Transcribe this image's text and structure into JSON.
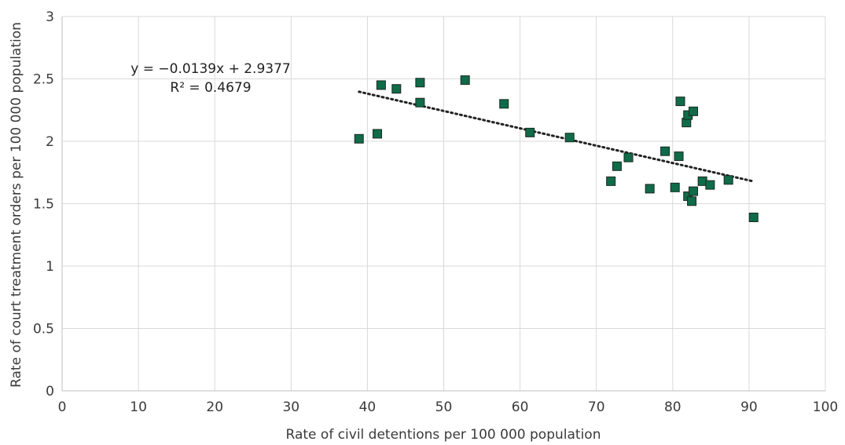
{
  "chart_data": {
    "type": "scatter",
    "title": "",
    "xlabel": "Rate of civil detentions per 100 000 population",
    "ylabel": "Rate of court treatment orders per 100 000 population",
    "xlim": [
      0,
      100
    ],
    "ylim": [
      0,
      3
    ],
    "x_ticks": [
      0,
      10,
      20,
      30,
      40,
      50,
      60,
      70,
      80,
      90,
      100
    ],
    "y_ticks": [
      0,
      0.5,
      1,
      1.5,
      2,
      2.5,
      3
    ],
    "y_tick_labels": [
      "0",
      "0.5",
      "1",
      "1.5",
      "2",
      "2.5",
      "3"
    ],
    "grid": true,
    "marker_color": "#0f6b4a",
    "marker_edge_color": "#1a2a22",
    "trendline_color": "#222222",
    "points": [
      {
        "x": 38.9,
        "y": 2.02
      },
      {
        "x": 41.3,
        "y": 2.06
      },
      {
        "x": 41.8,
        "y": 2.45
      },
      {
        "x": 43.8,
        "y": 2.42
      },
      {
        "x": 46.9,
        "y": 2.47
      },
      {
        "x": 46.9,
        "y": 2.31
      },
      {
        "x": 52.8,
        "y": 2.49
      },
      {
        "x": 57.9,
        "y": 2.3
      },
      {
        "x": 61.3,
        "y": 2.07
      },
      {
        "x": 66.5,
        "y": 2.03
      },
      {
        "x": 71.9,
        "y": 1.68
      },
      {
        "x": 72.7,
        "y": 1.8
      },
      {
        "x": 74.2,
        "y": 1.87
      },
      {
        "x": 77.0,
        "y": 1.62
      },
      {
        "x": 79.0,
        "y": 1.92
      },
      {
        "x": 80.3,
        "y": 1.63
      },
      {
        "x": 80.8,
        "y": 1.88
      },
      {
        "x": 81.0,
        "y": 2.32
      },
      {
        "x": 81.8,
        "y": 2.15
      },
      {
        "x": 82.0,
        "y": 2.21
      },
      {
        "x": 82.7,
        "y": 2.24
      },
      {
        "x": 82.0,
        "y": 1.56
      },
      {
        "x": 82.5,
        "y": 1.52
      },
      {
        "x": 82.7,
        "y": 1.6
      },
      {
        "x": 83.9,
        "y": 1.68
      },
      {
        "x": 84.9,
        "y": 1.65
      },
      {
        "x": 87.3,
        "y": 1.69
      },
      {
        "x": 90.6,
        "y": 1.39
      }
    ],
    "trendline": {
      "slope": -0.0139,
      "intercept": 2.9377,
      "x_range": [
        38.9,
        90.6
      ],
      "equation_label": "y = −0.0139x + 2.9377",
      "r_squared_label": "R² = 0.4679"
    }
  }
}
